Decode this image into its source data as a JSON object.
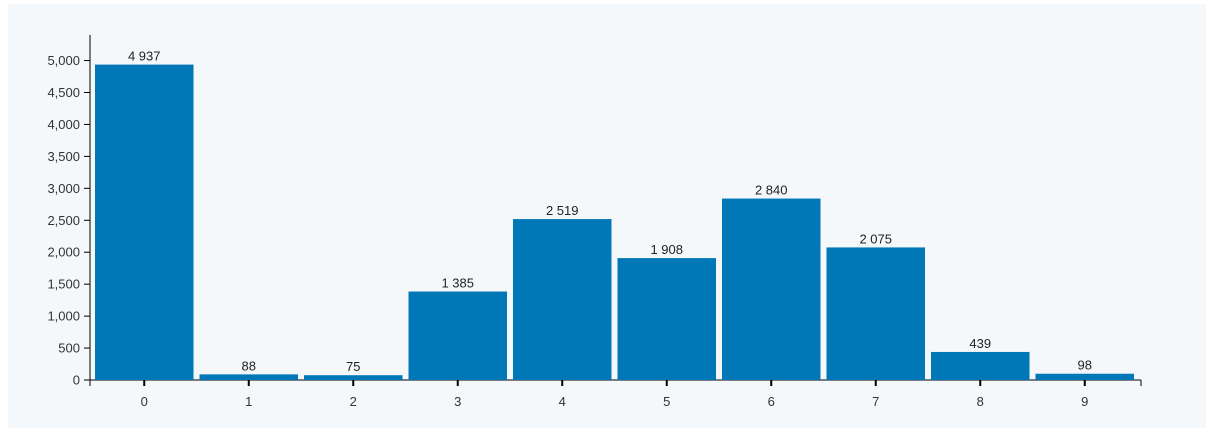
{
  "chart_data": {
    "type": "bar",
    "title": "",
    "xlabel": "",
    "ylabel": "",
    "categories": [
      "0",
      "1",
      "2",
      "3",
      "4",
      "5",
      "6",
      "7",
      "8",
      "9"
    ],
    "values": [
      4937,
      88,
      75,
      1385,
      2519,
      1908,
      2840,
      2075,
      439,
      98
    ],
    "value_labels": [
      "4 937",
      "88",
      "75",
      "1 385",
      "2 519",
      "1 908",
      "2 840",
      "2 075",
      "439",
      "98"
    ],
    "ylim": [
      0,
      5400
    ],
    "yticks": [
      0,
      500,
      1000,
      1500,
      2000,
      2500,
      3000,
      3500,
      4000,
      4500,
      5000
    ],
    "ytick_labels": [
      "0",
      "500",
      "1,000",
      "1,500",
      "2,000",
      "2,500",
      "3,000",
      "3,500",
      "4,000",
      "4,500",
      "5,000"
    ],
    "grid": false,
    "legend": "none",
    "bar_color": "#0078b8",
    "background_color": "#f5f8fa"
  }
}
